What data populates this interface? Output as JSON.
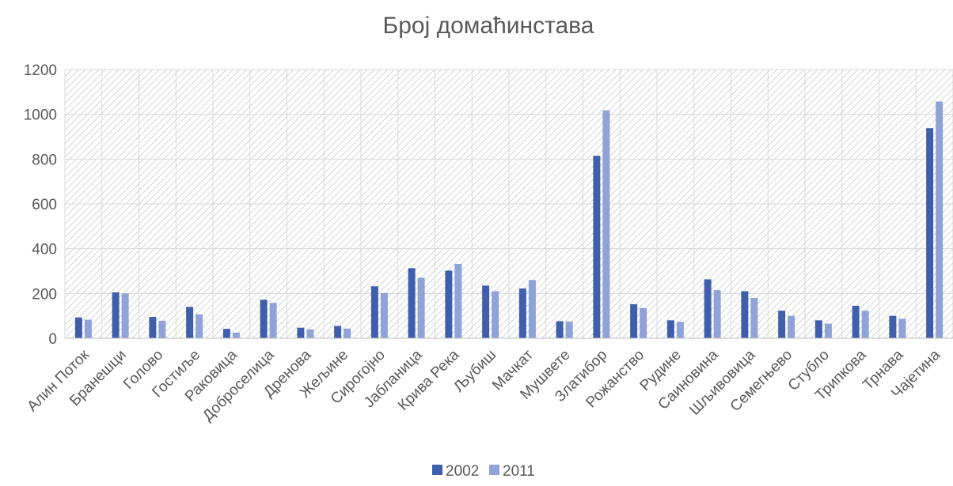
{
  "chart_data": {
    "type": "bar",
    "title": "Број домаћинстава",
    "xlabel": "",
    "ylabel": "",
    "ylim": [
      0,
      1200
    ],
    "yticks": [
      0,
      200,
      400,
      600,
      800,
      1000,
      1200
    ],
    "grid": true,
    "legend_position": "bottom",
    "categories": [
      "Алин Поток",
      "Бранешци",
      "Голово",
      "Гостиље",
      "Раковица",
      "Доброселица",
      "Дренова",
      "Жељине",
      "Сирогојно",
      "Јабланица",
      "Крива Река",
      "Љубиш",
      "Мачкат",
      "Мушвете",
      "Златибор",
      "Рожанство",
      "Рудине",
      "Саиновина",
      "Шљивовица",
      "Семегњево",
      "Стубло",
      "Трипкова",
      "Трнава",
      "Чајетина"
    ],
    "series": [
      {
        "name": "2002",
        "color": "#3f5fad",
        "values": [
          93,
          205,
          95,
          140,
          42,
          172,
          47,
          55,
          232,
          313,
          302,
          235,
          222,
          76,
          815,
          152,
          80,
          263,
          210,
          123,
          80,
          145,
          100,
          938
        ]
      },
      {
        "name": "2011",
        "color": "#8fa3d9",
        "values": [
          83,
          200,
          78,
          107,
          25,
          158,
          40,
          43,
          202,
          270,
          332,
          210,
          260,
          75,
          1018,
          135,
          73,
          215,
          180,
          100,
          65,
          123,
          87,
          1057
        ]
      }
    ]
  }
}
